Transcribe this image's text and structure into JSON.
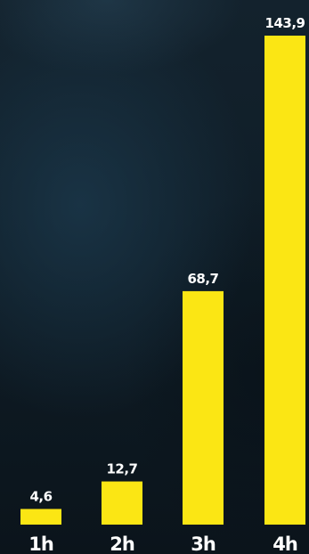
{
  "chart_data": {
    "type": "bar",
    "categories": [
      "1h",
      "2h",
      "3h",
      "4h"
    ],
    "values": [
      4.6,
      12.7,
      68.7,
      143.9
    ],
    "value_labels": [
      "4,6",
      "12,7",
      "68,7",
      "143,9"
    ],
    "title": "",
    "xlabel": "",
    "ylabel": "",
    "ylim": [
      0,
      143.9
    ],
    "grid": false,
    "bar_color": "#fbe614",
    "label_color": "#ffffff"
  }
}
